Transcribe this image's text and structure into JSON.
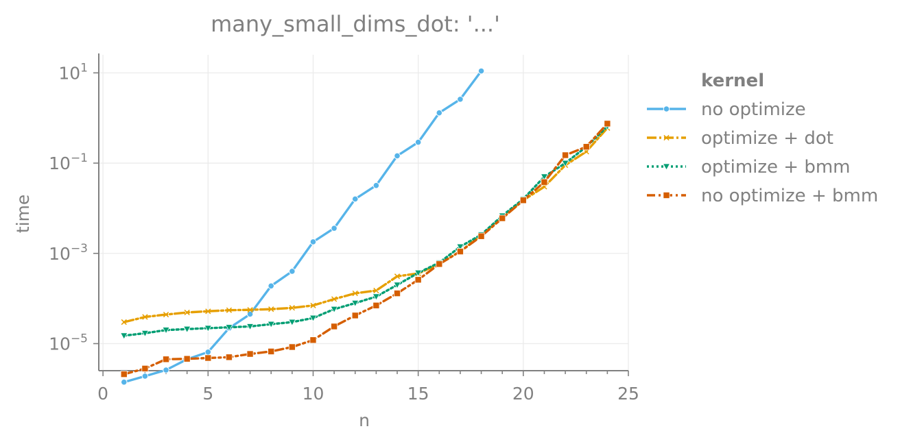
{
  "chart_data": {
    "type": "line",
    "title": "many_small_dims_dot: '...'",
    "xlabel": "n",
    "ylabel": "time",
    "xlim": [
      -0.2,
      25
    ],
    "ylim_log10": [
      -5.6,
      1.4
    ],
    "y_scale": "log",
    "grid": true,
    "legend_title": "kernel",
    "legend_position": "right",
    "x_ticks": [
      0,
      5,
      10,
      15,
      20,
      25
    ],
    "y_ticks": [
      {
        "value": 10,
        "base": "10",
        "exp": "1"
      },
      {
        "value": 0.1,
        "base": "10",
        "exp": "−1"
      },
      {
        "value": 0.001,
        "base": "10",
        "exp": "−3"
      },
      {
        "value": 1e-05,
        "base": "10",
        "exp": "−5"
      }
    ],
    "series": [
      {
        "name": "no optimize",
        "color": "#56b4e9",
        "marker": "circle",
        "dash": "",
        "x": [
          1,
          2,
          3,
          4,
          5,
          6,
          7,
          8,
          9,
          10,
          11,
          12,
          13,
          14,
          15,
          16,
          17,
          18
        ],
        "y": [
          1.4e-06,
          1.9e-06,
          2.6e-06,
          4.5e-06,
          6.5e-06,
          2.2e-05,
          4.5e-05,
          0.00019,
          0.0004,
          0.0018,
          0.0036,
          0.016,
          0.032,
          0.145,
          0.29,
          1.3,
          2.6,
          11
        ]
      },
      {
        "name": "optimize + dot",
        "color": "#e69f00",
        "marker": "x",
        "dash": "14 4 3 4",
        "x": [
          1,
          2,
          3,
          4,
          5,
          6,
          7,
          8,
          9,
          10,
          11,
          12,
          13,
          14,
          15,
          16,
          17,
          18,
          19,
          20,
          21,
          22,
          23,
          24
        ],
        "y": [
          3e-05,
          3.9e-05,
          4.4e-05,
          4.9e-05,
          5.2e-05,
          5.5e-05,
          5.6e-05,
          5.8e-05,
          6.2e-05,
          7e-05,
          9.7e-05,
          0.00013,
          0.00015,
          0.00031,
          0.00036,
          0.00058,
          0.0011,
          0.0025,
          0.006,
          0.015,
          0.03,
          0.09,
          0.18,
          0.6
        ]
      },
      {
        "name": "optimize + bmm",
        "color": "#009e73",
        "marker": "triangle-down",
        "dash": "3 4",
        "x": [
          1,
          2,
          3,
          4,
          5,
          6,
          7,
          8,
          9,
          10,
          11,
          12,
          13,
          14,
          15,
          16,
          17,
          18,
          19,
          20,
          21,
          22,
          23,
          24
        ],
        "y": [
          1.5e-05,
          1.7e-05,
          2e-05,
          2.1e-05,
          2.2e-05,
          2.3e-05,
          2.4e-05,
          2.7e-05,
          3e-05,
          3.7e-05,
          5.8e-05,
          7.9e-05,
          0.00011,
          0.0002,
          0.00037,
          0.00062,
          0.0014,
          0.0026,
          0.0068,
          0.016,
          0.05,
          0.1,
          0.23,
          0.65
        ]
      },
      {
        "name": "no optimize + bmm",
        "color": "#d55e00",
        "marker": "square",
        "dash": "12 5 3 5",
        "x": [
          1,
          2,
          3,
          4,
          5,
          6,
          7,
          8,
          9,
          10,
          11,
          12,
          13,
          14,
          15,
          16,
          17,
          18,
          19,
          20,
          21,
          22,
          23,
          24
        ],
        "y": [
          2.1e-06,
          2.8e-06,
          4.5e-06,
          4.6e-06,
          4.8e-06,
          5e-06,
          5.9e-06,
          6.7e-06,
          8.4e-06,
          1.2e-05,
          2.4e-05,
          4.2e-05,
          7e-05,
          0.00013,
          0.00026,
          0.00058,
          0.0011,
          0.0024,
          0.006,
          0.015,
          0.038,
          0.15,
          0.23,
          0.75
        ]
      }
    ]
  }
}
